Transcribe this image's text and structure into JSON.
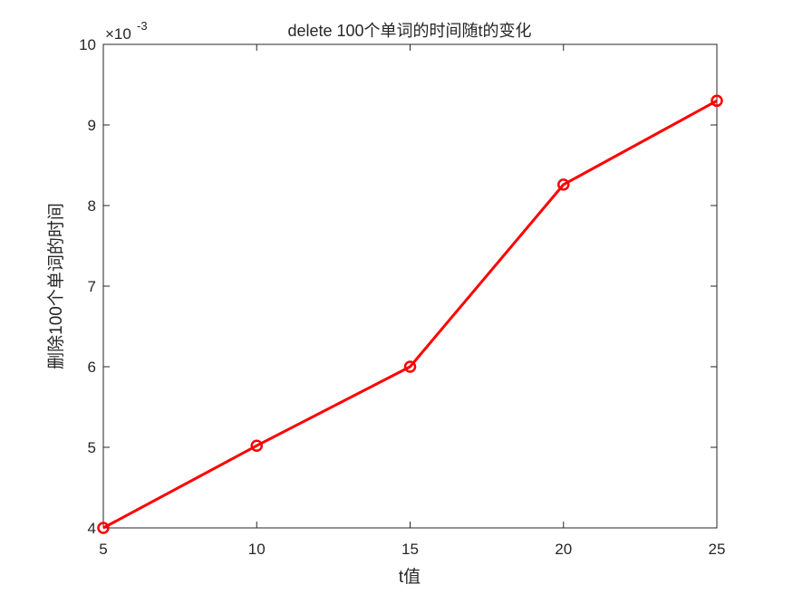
{
  "chart_data": {
    "type": "line",
    "title": "delete 100个单词的时间随t的变化",
    "xlabel": "t值",
    "ylabel": "删除100个单词的时间",
    "y_exponent_label": "×10",
    "y_exponent_power": "-3",
    "xlim": [
      5,
      25
    ],
    "ylim": [
      4,
      10
    ],
    "x_ticks": [
      "5",
      "10",
      "15",
      "20",
      "25"
    ],
    "y_ticks": [
      "4",
      "5",
      "6",
      "7",
      "8",
      "9",
      "10"
    ],
    "grid": false,
    "series": [
      {
        "color": "#ff0000",
        "marker": "circle",
        "x": [
          5,
          10,
          15,
          20,
          25
        ],
        "y": [
          4.0,
          5.02,
          6.0,
          8.26,
          9.3
        ]
      }
    ]
  }
}
